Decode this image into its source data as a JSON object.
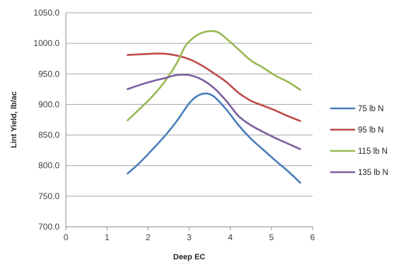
{
  "chart_data": {
    "type": "line",
    "title": "",
    "xlabel": "Deep EC",
    "ylabel": "Lint Yield, lb/ac",
    "xlim": [
      0,
      6
    ],
    "ylim": [
      700,
      1050
    ],
    "x_ticks": [
      0,
      1,
      2,
      3,
      4,
      5,
      6
    ],
    "y_ticks": [
      700,
      750,
      800,
      850,
      900,
      950,
      1000,
      1050
    ],
    "y_tick_labels": [
      "700.0",
      "750.0",
      "800.0",
      "850.0",
      "900.0",
      "950.0",
      "1000.0",
      "1050.0"
    ],
    "grid": "horizontal",
    "legend_position": "right",
    "series": [
      {
        "name": "75 lb N",
        "color": "#4a7ebb",
        "x": [
          1.5,
          1.8,
          2.1,
          2.4,
          2.7,
          3.0,
          3.2,
          3.4,
          3.6,
          3.9,
          4.2,
          4.5,
          4.8,
          5.1,
          5.4,
          5.7
        ],
        "y": [
          787,
          805,
          826,
          848,
          873,
          902,
          914,
          918,
          913,
          892,
          866,
          844,
          826,
          808,
          791,
          772
        ]
      },
      {
        "name": "95 lb N",
        "color": "#be4b48",
        "x": [
          1.5,
          1.8,
          2.1,
          2.4,
          2.7,
          3.0,
          3.3,
          3.6,
          3.9,
          4.2,
          4.5,
          4.8,
          5.1,
          5.4,
          5.7
        ],
        "y": [
          981,
          982,
          983,
          983,
          980,
          974,
          964,
          951,
          937,
          919,
          906,
          898,
          890,
          881,
          873
        ]
      },
      {
        "name": "115 lb N",
        "color": "#98b954",
        "x": [
          1.5,
          1.8,
          2.1,
          2.4,
          2.7,
          2.9,
          3.1,
          3.3,
          3.5,
          3.7,
          3.9,
          4.2,
          4.5,
          4.8,
          5.1,
          5.4,
          5.7
        ],
        "y": [
          874,
          893,
          913,
          937,
          968,
          995,
          1009,
          1017,
          1020,
          1018,
          1008,
          990,
          972,
          960,
          947,
          937,
          924
        ]
      },
      {
        "name": "135 lb N",
        "color": "#7d60a0",
        "x": [
          1.5,
          1.8,
          2.1,
          2.4,
          2.7,
          3.0,
          3.3,
          3.6,
          3.9,
          4.2,
          4.5,
          4.8,
          5.1,
          5.4,
          5.7
        ],
        "y": [
          925,
          932,
          938,
          943,
          948,
          948,
          941,
          927,
          906,
          881,
          866,
          855,
          845,
          836,
          827
        ]
      }
    ]
  }
}
